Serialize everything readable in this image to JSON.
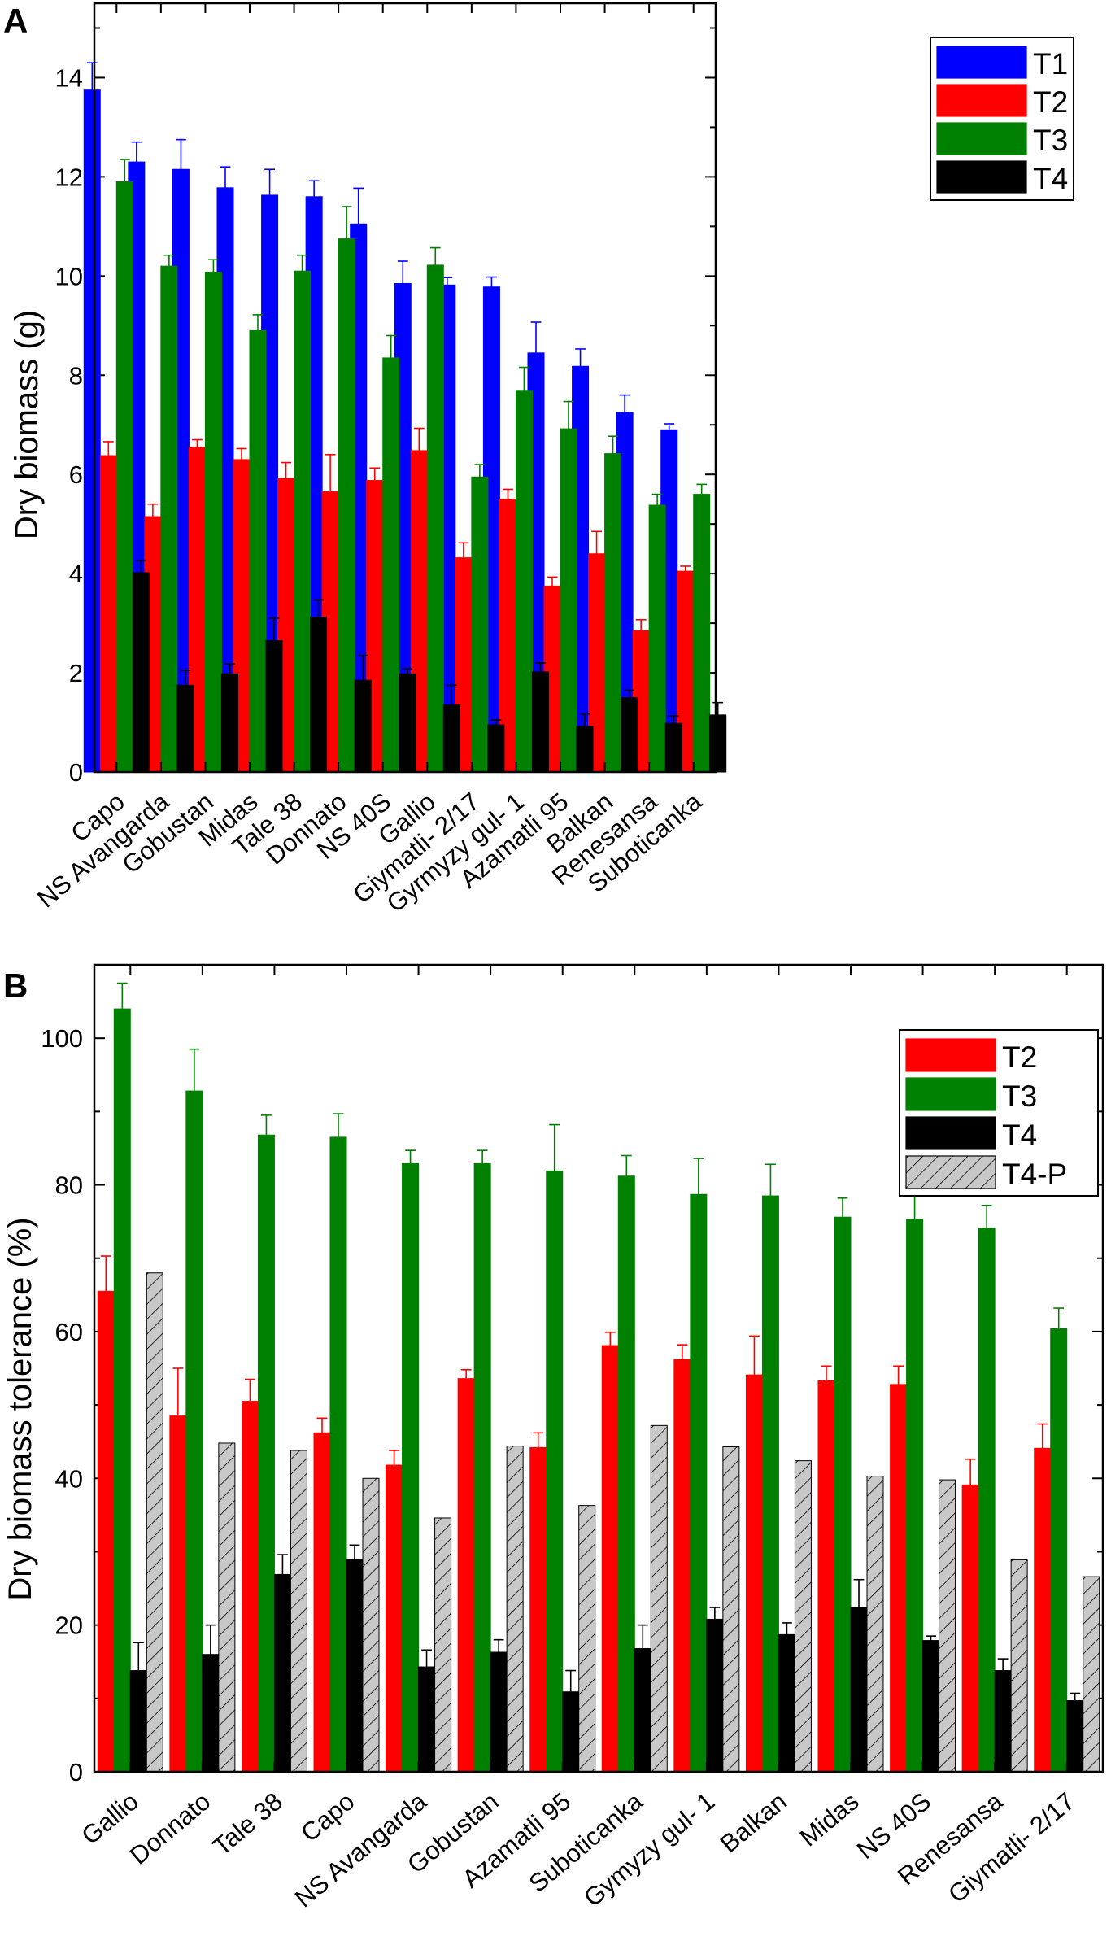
{
  "chart_data": [
    {
      "panel": "A",
      "type": "bar",
      "ylabel": "Dry biomass (g)",
      "xlabel": "",
      "ylim": [
        0,
        15.5
      ],
      "yticks": [
        0,
        2,
        4,
        6,
        8,
        10,
        12,
        14
      ],
      "legend": "top-right",
      "categories": [
        "Capo",
        "NS Avangarda",
        "Gobustan",
        "Midas",
        "Tale 38",
        "Donnato",
        "NS 40S",
        "Gallio",
        "Giymatli- 2/17",
        "Gyrmyzy gul- 1",
        "Azamatli 95",
        "Balkan",
        "Renesansa",
        "Suboticanka"
      ],
      "series": [
        {
          "name": "T1",
          "color": "#0000ff",
          "values": [
            13.75,
            12.3,
            12.15,
            11.78,
            11.63,
            11.6,
            11.05,
            9.85,
            9.82,
            9.78,
            8.45,
            8.18,
            7.25,
            6.9
          ],
          "errors": [
            0.55,
            0.4,
            0.6,
            0.42,
            0.52,
            0.32,
            0.72,
            0.45,
            0.15,
            0.2,
            0.62,
            0.35,
            0.35,
            0.12
          ]
        },
        {
          "name": "T2",
          "color": "#ff0000",
          "values": [
            6.38,
            5.15,
            6.55,
            6.3,
            5.92,
            5.65,
            5.88,
            6.48,
            4.32,
            5.5,
            3.75,
            4.4,
            2.85,
            4.05
          ],
          "errors": [
            0.28,
            0.25,
            0.15,
            0.22,
            0.32,
            0.75,
            0.25,
            0.45,
            0.3,
            0.2,
            0.18,
            0.45,
            0.22,
            0.1
          ]
        },
        {
          "name": "T3",
          "color": "#008000",
          "values": [
            11.9,
            10.2,
            10.08,
            8.9,
            10.1,
            10.75,
            8.35,
            10.22,
            5.95,
            7.68,
            6.92,
            6.42,
            5.38,
            5.6
          ],
          "errors": [
            0.45,
            0.22,
            0.25,
            0.32,
            0.32,
            0.65,
            0.45,
            0.35,
            0.25,
            0.48,
            0.55,
            0.35,
            0.22,
            0.2
          ]
        },
        {
          "name": "T4",
          "color": "#000000",
          "values": [
            4.02,
            1.75,
            1.98,
            2.65,
            3.12,
            1.85,
            1.98,
            1.35,
            0.95,
            2.02,
            0.92,
            1.5,
            0.98,
            1.15
          ],
          "errors": [
            0.25,
            0.3,
            0.2,
            0.45,
            0.35,
            0.5,
            0.1,
            0.4,
            0.1,
            0.18,
            0.25,
            0.15,
            0.15,
            0.25
          ]
        }
      ]
    },
    {
      "panel": "B",
      "type": "bar",
      "ylabel": "Dry biomass tolerance (%)",
      "xlabel": "",
      "ylim": [
        0,
        110
      ],
      "yticks": [
        0,
        20,
        40,
        60,
        80,
        100
      ],
      "legend": "top-right",
      "categories": [
        "Gallio",
        "Donnato",
        "Tale 38",
        "Capo",
        "NS Avangarda",
        "Gobustan",
        "Azamatli 95",
        "Suboticanka",
        "Gymyzy gul- 1",
        "Balkan",
        "Midas",
        "NS 40S",
        "Renesansa",
        "Giymatli- 2/17"
      ],
      "series": [
        {
          "name": "T2",
          "color": "#ff0000",
          "values": [
            65.5,
            48.5,
            50.5,
            46.2,
            41.8,
            53.6,
            44.2,
            58.1,
            56.2,
            54.1,
            53.3,
            52.8,
            39.1,
            44.1
          ],
          "errors": [
            4.8,
            6.5,
            3.0,
            2.0,
            2.0,
            1.2,
            2.0,
            1.8,
            2.0,
            5.3,
            2.0,
            2.5,
            3.5,
            3.3
          ]
        },
        {
          "name": "T3",
          "color": "#008000",
          "values": [
            104.0,
            92.8,
            86.8,
            86.5,
            82.9,
            82.9,
            81.9,
            81.2,
            78.7,
            78.5,
            75.6,
            75.3,
            74.1,
            60.4
          ],
          "errors": [
            3.5,
            5.7,
            2.7,
            3.2,
            1.8,
            1.8,
            6.3,
            2.8,
            4.9,
            4.3,
            2.6,
            3.2,
            3.1,
            2.8
          ]
        },
        {
          "name": "T4",
          "color": "#000000",
          "values": [
            13.8,
            16.0,
            26.9,
            29.0,
            14.3,
            16.3,
            10.9,
            16.8,
            20.8,
            18.7,
            22.4,
            17.9,
            13.8,
            9.7
          ],
          "errors": [
            3.8,
            4.0,
            2.7,
            1.9,
            2.3,
            1.7,
            2.9,
            3.2,
            1.6,
            1.6,
            3.8,
            0.6,
            1.6,
            1.0
          ]
        },
        {
          "name": "T4-P",
          "color": "#c0c0c0",
          "pattern": "hatched",
          "values": [
            68.0,
            44.8,
            43.8,
            40.0,
            34.6,
            44.4,
            36.3,
            47.2,
            44.3,
            42.4,
            40.3,
            39.8,
            28.9,
            26.6
          ],
          "errors": [
            0,
            0,
            0,
            0,
            0,
            0,
            0,
            0,
            0,
            0,
            0,
            0,
            0,
            0
          ]
        }
      ]
    }
  ]
}
